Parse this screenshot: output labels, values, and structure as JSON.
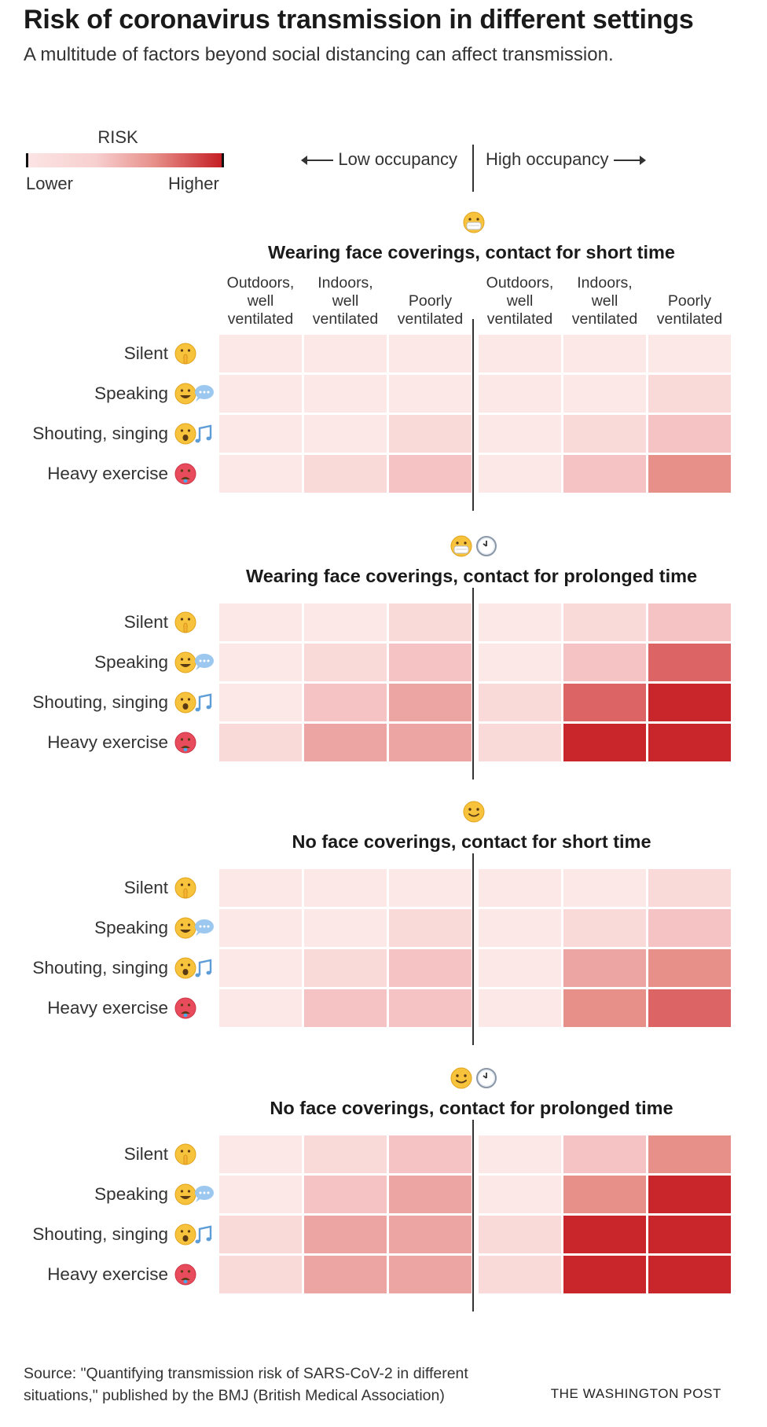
{
  "title": "Risk of coronavirus transmission in different settings",
  "subtitle": "A multitude of factors beyond social distancing can affect transmission.",
  "legend": {
    "title": "RISK",
    "low": "Lower",
    "high": "Higher"
  },
  "occupancy": {
    "low": "Low occupancy",
    "high": "High occupancy"
  },
  "footer": {
    "source": "Source: \"Quantifying transmission risk of SARS-CoV-2 in different\nsituations,\" published by the BMJ (British Medical Association)",
    "brand": "THE WASHINGTON POST"
  },
  "chart_data": {
    "type": "heatmap",
    "title": "Risk of coronavirus transmission in different settings",
    "value_scale": "risk level 0 (lower) to 1 (higher)",
    "columns": [
      {
        "label": "Outdoors,\nwell\nventilated",
        "occupancy": "Low occupancy"
      },
      {
        "label": "Indoors,\nwell\nventilated",
        "occupancy": "Low occupancy"
      },
      {
        "label": "Poorly\nventilated",
        "occupancy": "Low occupancy"
      },
      {
        "label": "Outdoors,\nwell\nventilated",
        "occupancy": "High occupancy"
      },
      {
        "label": "Indoors,\nwell\nventilated",
        "occupancy": "High occupancy"
      },
      {
        "label": "Poorly\nventilated",
        "occupancy": "High occupancy"
      }
    ],
    "rows": [
      "Silent",
      "Speaking",
      "Shouting, singing",
      "Heavy exercise"
    ],
    "color_scale": [
      "#fde8e8",
      "#fad9d9",
      "#f5c3c3",
      "#eda5a3",
      "#e7908a",
      "#dc6464",
      "#c8262b"
    ],
    "panels": [
      {
        "title": "Wearing face coverings, contact for short time",
        "icons": [
          "mask"
        ],
        "levels": [
          [
            0,
            0,
            0,
            0,
            0,
            0
          ],
          [
            0,
            0,
            0,
            0,
            0,
            1
          ],
          [
            0,
            0,
            1,
            0,
            1,
            2
          ],
          [
            0,
            1,
            2,
            0,
            2,
            4
          ]
        ]
      },
      {
        "title": "Wearing face coverings, contact for prolonged time",
        "icons": [
          "mask",
          "clock"
        ],
        "levels": [
          [
            0,
            0,
            1,
            0,
            1,
            2
          ],
          [
            0,
            1,
            2,
            0,
            2,
            5
          ],
          [
            0,
            2,
            3,
            1,
            5,
            6
          ],
          [
            1,
            3,
            3,
            1,
            6,
            6
          ]
        ]
      },
      {
        "title": "No face coverings, contact for short time",
        "icons": [
          "smile"
        ],
        "levels": [
          [
            0,
            0,
            0,
            0,
            0,
            1
          ],
          [
            0,
            0,
            1,
            0,
            1,
            2
          ],
          [
            0,
            1,
            2,
            0,
            3,
            4
          ],
          [
            0,
            2,
            2,
            0,
            4,
            5
          ]
        ]
      },
      {
        "title": "No face coverings, contact for prolonged time",
        "icons": [
          "smile",
          "clock"
        ],
        "levels": [
          [
            0,
            1,
            2,
            0,
            2,
            4
          ],
          [
            0,
            2,
            3,
            0,
            4,
            6
          ],
          [
            1,
            3,
            3,
            1,
            6,
            6
          ],
          [
            1,
            3,
            3,
            1,
            6,
            6
          ]
        ]
      }
    ]
  },
  "row_emoji": [
    "shush-face-icon",
    "speaking-face-icon",
    "singing-face-icon",
    "hot-face-icon"
  ]
}
